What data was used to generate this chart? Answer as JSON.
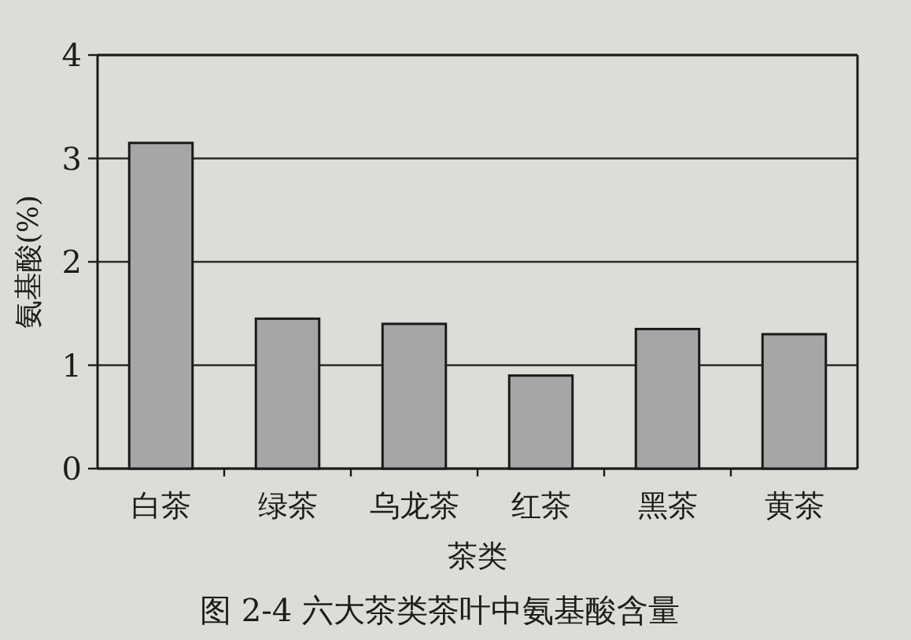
{
  "chart_data": {
    "type": "bar",
    "title": "图 2-4 六大茶类茶叶中氨基酸含量",
    "xlabel": "茶类",
    "ylabel": "氨基酸(%)",
    "categories": [
      "白茶",
      "绿茶",
      "乌龙茶",
      "红茶",
      "黑茶",
      "黄茶"
    ],
    "values": [
      3.15,
      1.45,
      1.4,
      0.9,
      1.35,
      1.3
    ],
    "color": "#a6a6a6",
    "ylim": [
      0,
      4
    ],
    "yticks": [
      0,
      1,
      2,
      3,
      4
    ],
    "grid": "y"
  }
}
